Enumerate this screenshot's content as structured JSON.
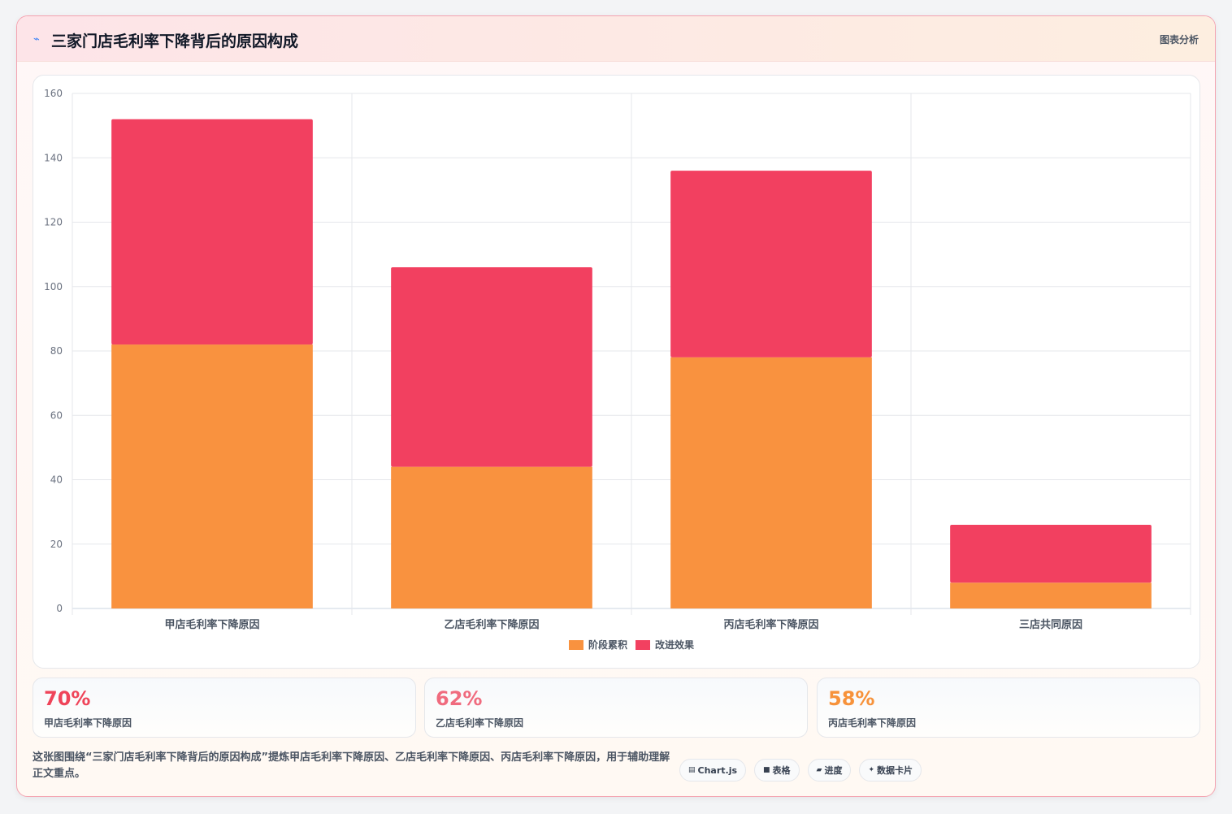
{
  "header": {
    "icon": "chart-trend-icon",
    "title": "三家门店毛利率下降背后的原因构成",
    "tag": "图表分析"
  },
  "chart_data": {
    "type": "bar",
    "stacked": true,
    "categories": [
      "甲店毛利率下降原因",
      "乙店毛利率下降原因",
      "丙店毛利率下降原因",
      "三店共同原因"
    ],
    "series": [
      {
        "name": "阶段累积",
        "values": [
          82,
          44,
          78,
          8
        ],
        "color": "#f9923f"
      },
      {
        "name": "改进效果",
        "values": [
          70,
          62,
          58,
          18
        ],
        "color": "#f24060"
      }
    ],
    "ylim": [
      0,
      160
    ],
    "yticks": [
      0,
      20,
      40,
      60,
      80,
      100,
      120,
      140,
      160
    ],
    "grid": true,
    "legend": "bottom"
  },
  "kpis": [
    {
      "value": "70%",
      "label": "甲店毛利率下降原因",
      "color": "#ef4459"
    },
    {
      "value": "62%",
      "label": "乙店毛利率下降原因",
      "color": "#f06b7e"
    },
    {
      "value": "58%",
      "label": "丙店毛利率下降原因",
      "color": "#f7923a"
    }
  ],
  "footnote": "这张图围绕“三家门店毛利率下降背后的原因构成”提炼甲店毛利率下降原因、乙店毛利率下降原因、丙店毛利率下降原因，用于辅助理解正文重点。",
  "chips": [
    {
      "icon": "chart-icon",
      "glyph": "▤",
      "label": "Chart.js"
    },
    {
      "icon": "table-icon",
      "glyph": "■",
      "label": "表格"
    },
    {
      "icon": "progress-icon",
      "glyph": "▰",
      "label": "进度"
    },
    {
      "icon": "sparkle-icon",
      "glyph": "✦",
      "label": "数据卡片"
    }
  ]
}
